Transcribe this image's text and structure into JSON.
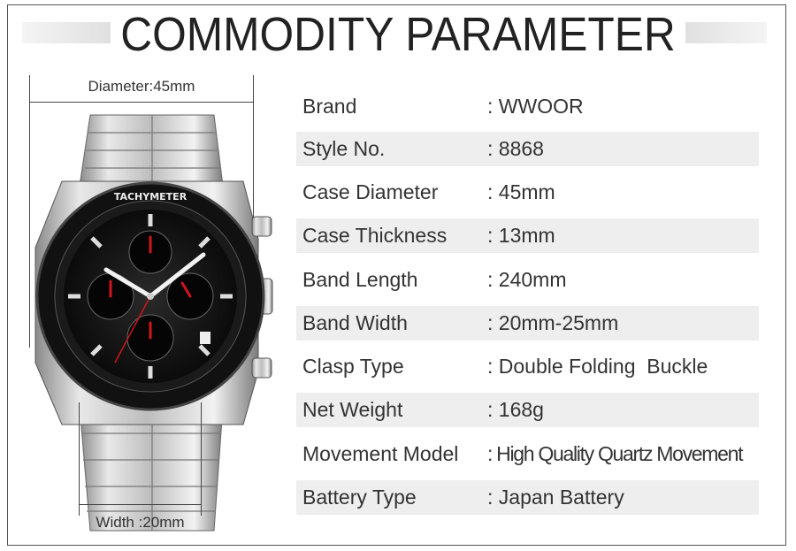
{
  "header": {
    "title": "COMMODITY PARAMETER"
  },
  "dimensions": {
    "diameter_label": "Diameter:45mm",
    "width_label": "Width :20mm"
  },
  "specs": [
    {
      "label": "Brand",
      "value": ": WWOOR"
    },
    {
      "label": "Style No.",
      "value": ": 8868"
    },
    {
      "label": "Case Diameter",
      "value": ": 45mm"
    },
    {
      "label": "Case Thickness",
      "value": ": 13mm"
    },
    {
      "label": "Band Length",
      "value": ": 240mm"
    },
    {
      "label": "Band Width",
      "value": ": 20mm-25mm"
    },
    {
      "label": "Clasp Type",
      "value": ": Double Folding  Buckle"
    },
    {
      "label": "Net Weight",
      "value": ": 168g"
    },
    {
      "label": "Movement Model",
      "value": ": High Quality Quartz Movement"
    },
    {
      "label": "Battery Type",
      "value": ": Japan Battery"
    }
  ],
  "watch": {
    "bezel_text": "TACHYMETER",
    "hand_color": "#d0161b",
    "dial_color": "#111111"
  }
}
